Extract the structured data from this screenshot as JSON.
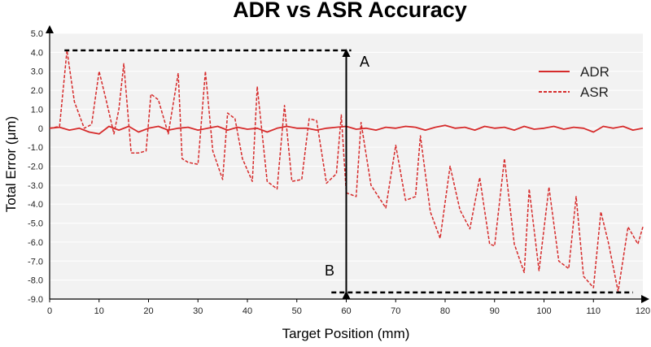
{
  "chart_data": {
    "type": "line",
    "title": "ADR vs ASR Accuracy",
    "xlabel": "Target Position (mm)",
    "ylabel": "Total Error (μm)",
    "xlim": [
      0,
      120
    ],
    "ylim": [
      -9.0,
      5.0
    ],
    "xticks": [
      0,
      10,
      20,
      30,
      40,
      50,
      60,
      70,
      80,
      90,
      100,
      110,
      120
    ],
    "yticks": [
      5.0,
      4.0,
      3.0,
      2.0,
      1.0,
      0,
      -1.0,
      -2.0,
      -3.0,
      -4.0,
      -5.0,
      -6.0,
      -7.0,
      -8.0,
      -9.0
    ],
    "ytick_labels": [
      "5.0",
      "4.0",
      "3.0",
      "2.0",
      "1.0",
      "0",
      "-1.0",
      "-2.0",
      "-3.0",
      "-4.0",
      "-5.0",
      "-6.0",
      "-7.0",
      "-8.0",
      "-9.0"
    ],
    "grid": true,
    "legend_position": "top-right",
    "series": [
      {
        "name": "ADR",
        "color": "#d62b2b",
        "dash": "solid",
        "x": [
          0,
          2,
          4,
          6,
          8,
          10,
          12,
          14,
          16,
          18,
          20,
          22,
          24,
          26,
          28,
          30,
          32,
          34,
          36,
          38,
          40,
          42,
          44,
          46,
          48,
          50,
          52,
          54,
          56,
          58,
          60,
          62,
          64,
          66,
          68,
          70,
          72,
          74,
          76,
          78,
          80,
          82,
          84,
          86,
          88,
          90,
          92,
          94,
          96,
          98,
          100,
          102,
          104,
          106,
          108,
          110,
          112,
          114,
          116,
          118,
          120
        ],
        "values": [
          0.0,
          0.05,
          -0.1,
          0.0,
          -0.2,
          -0.3,
          0.1,
          -0.1,
          0.1,
          -0.2,
          0.0,
          0.1,
          -0.1,
          0.0,
          0.05,
          -0.1,
          0.0,
          0.1,
          -0.1,
          0.05,
          -0.05,
          0.0,
          -0.2,
          0.0,
          0.1,
          0.0,
          0.0,
          -0.1,
          0.0,
          0.05,
          0.1,
          -0.05,
          0.0,
          -0.1,
          0.05,
          0.0,
          0.1,
          0.05,
          -0.1,
          0.05,
          0.15,
          0.0,
          0.05,
          -0.1,
          0.1,
          0.0,
          0.05,
          -0.1,
          0.1,
          -0.05,
          0.0,
          0.1,
          -0.05,
          0.05,
          0.0,
          -0.2,
          0.1,
          0.0,
          0.1,
          -0.1,
          0.0
        ]
      },
      {
        "name": "ASR",
        "color": "#d62b2b",
        "dash": "dashed",
        "x": [
          0,
          2,
          3.5,
          5,
          7,
          8.5,
          10,
          11.5,
          13,
          14,
          15,
          16.5,
          18,
          19.5,
          20.5,
          22,
          24,
          26,
          26.8,
          28,
          30,
          31.5,
          33,
          35,
          36,
          37.5,
          39,
          41,
          42,
          44,
          46,
          47.5,
          49,
          51,
          52.5,
          54,
          56,
          58,
          59,
          60,
          62,
          63,
          65,
          68,
          70,
          72,
          74,
          75,
          77,
          79,
          81,
          83,
          85,
          87,
          89,
          90,
          92,
          94,
          96,
          97,
          99,
          101,
          103,
          105,
          106.5,
          108,
          110,
          111.5,
          113,
          115,
          117,
          119,
          120
        ],
        "values": [
          0.0,
          0.1,
          4.1,
          1.4,
          0.0,
          0.2,
          3.0,
          1.4,
          -0.3,
          1.0,
          3.4,
          -1.3,
          -1.3,
          -1.2,
          1.8,
          1.5,
          -0.3,
          2.9,
          -1.6,
          -1.8,
          -1.9,
          3.0,
          -1.2,
          -2.7,
          0.8,
          0.5,
          -1.6,
          -2.8,
          2.2,
          -2.8,
          -3.2,
          1.2,
          -2.8,
          -2.7,
          0.5,
          0.4,
          -2.9,
          -2.4,
          0.7,
          -3.4,
          -3.6,
          0.3,
          -3.0,
          -4.2,
          -0.9,
          -3.8,
          -3.6,
          -0.4,
          -4.4,
          -5.8,
          -2.0,
          -4.3,
          -5.3,
          -2.6,
          -6.1,
          -6.2,
          -1.6,
          -6.1,
          -7.6,
          -3.2,
          -7.5,
          -3.1,
          -7.0,
          -7.4,
          -3.6,
          -7.8,
          -8.4,
          -4.4,
          -6.0,
          -8.6,
          -5.2,
          -6.1,
          -5.2
        ]
      }
    ],
    "annotations": [
      {
        "label": "A",
        "value": 4.1,
        "x_start": 3,
        "x_end": 61
      },
      {
        "label": "B",
        "value": -8.65,
        "x_start": 57,
        "x_end": 118
      },
      {
        "label": "",
        "type": "double-arrow",
        "x": 60,
        "from": -8.65,
        "to": 4.1
      }
    ]
  }
}
